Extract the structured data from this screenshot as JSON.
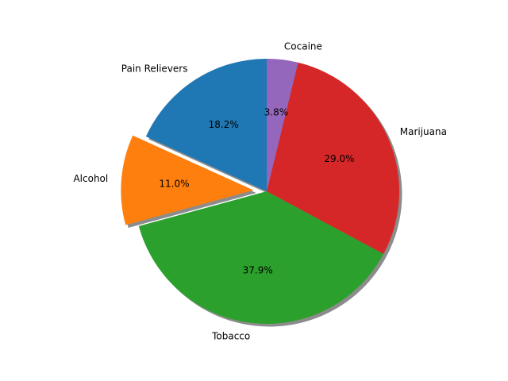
{
  "chart_data": {
    "type": "pie",
    "start_angle_deg": 90,
    "direction": "counterclockwise",
    "shadow": true,
    "slices": [
      {
        "label": "Pain Relievers",
        "value": 18.2,
        "pct_label": "18.2%",
        "color": "#1f77b4",
        "explode": 0
      },
      {
        "label": "Alcohol",
        "value": 11.0,
        "pct_label": "11.0%",
        "color": "#ff7f0e",
        "explode": 0.1
      },
      {
        "label": "Tobacco",
        "value": 37.9,
        "pct_label": "37.9%",
        "color": "#2ca02c",
        "explode": 0
      },
      {
        "label": "Marijuana",
        "value": 29.0,
        "pct_label": "29.0%",
        "color": "#d62728",
        "explode": 0
      },
      {
        "label": "Cocaine",
        "value": 3.8,
        "pct_label": "3.8%",
        "color": "#9467bd",
        "explode": 0
      }
    ]
  }
}
